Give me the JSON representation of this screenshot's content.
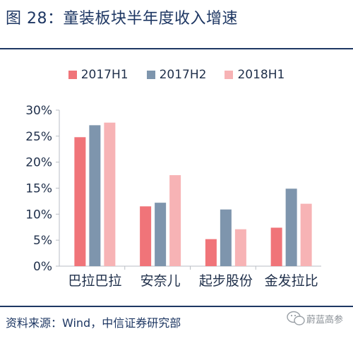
{
  "title": "图 28：童装板块半年度收入增速",
  "source": "资料来源：Wind，中信证券研究部",
  "chart_data": {
    "type": "bar",
    "categories": [
      "巴拉巴拉",
      "安奈儿",
      "起步股份",
      "金发拉比"
    ],
    "series": [
      {
        "name": "2017H1",
        "color": "#f07479",
        "values": [
          24.8,
          11.5,
          5.2,
          7.4
        ]
      },
      {
        "name": "2017H2",
        "color": "#7e95ad",
        "values": [
          27.1,
          12.2,
          10.9,
          14.9
        ]
      },
      {
        "name": "2018H1",
        "color": "#f7b3b5",
        "values": [
          27.6,
          17.5,
          7.1,
          12.0
        ]
      }
    ],
    "ylim": [
      0,
      30
    ],
    "yticks": [
      "0%",
      "5%",
      "10%",
      "15%",
      "20%",
      "25%",
      "30%"
    ],
    "legend": "top",
    "grid": false
  },
  "watermark": {
    "icon": "wechat-icon",
    "label": "蔚蓝高参"
  }
}
